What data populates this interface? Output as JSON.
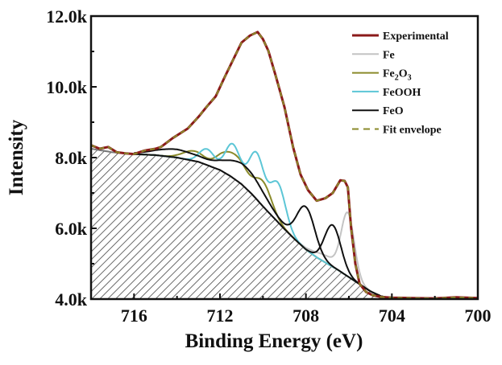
{
  "chart_data": {
    "type": "line",
    "title": "",
    "xlabel": "Binding Energy (eV)",
    "ylabel": "Intensity",
    "xlim": [
      718,
      700
    ],
    "ylim": [
      4000,
      12000
    ],
    "x_reversed": true,
    "x_ticks": [
      716,
      712,
      708,
      704,
      700
    ],
    "y_ticks": [
      4000,
      6000,
      8000,
      10000,
      12000
    ],
    "y_tick_labels": [
      "4.0k",
      "6.0k",
      "8.0k",
      "10.0k",
      "12.0k"
    ],
    "legend_position": "top-right",
    "colors": {
      "Experimental": "#8b1a1a",
      "Fe": "#c4c4c4",
      "Fe2O3": "#8a8a2a",
      "FeOOH": "#5cc6d6",
      "FeO": "#111111",
      "Fit envelope": "#8a8a2a",
      "Background": "#555555"
    },
    "legend": [
      {
        "key": "Experimental",
        "label": "Experimental",
        "sub": "",
        "tail": ""
      },
      {
        "key": "Fe",
        "label": "Fe",
        "sub": "",
        "tail": ""
      },
      {
        "key": "Fe2O3",
        "label": "Fe",
        "sub": "2",
        "mid": "O",
        "sub2": "3"
      },
      {
        "key": "FeOOH",
        "label": "FeOOH",
        "sub": "",
        "tail": ""
      },
      {
        "key": "FeO",
        "label": "FeO",
        "sub": "",
        "tail": ""
      },
      {
        "key": "Fit envelope",
        "label": "Fit envelope",
        "sub": "",
        "tail": ""
      }
    ],
    "background": {
      "x": [
        718,
        717,
        716,
        715,
        714,
        713,
        712,
        711.5,
        711,
        710.5,
        710,
        709.5,
        709,
        708.5,
        708,
        707.5,
        707,
        706.5,
        706,
        705.5,
        705,
        704.5,
        704,
        702,
        700
      ],
      "y": [
        8250,
        8150,
        8100,
        8070,
        8000,
        7880,
        7650,
        7470,
        7250,
        6960,
        6620,
        6300,
        5980,
        5680,
        5400,
        5180,
        5000,
        4820,
        4620,
        4420,
        4220,
        4080,
        4020,
        4010,
        4000
      ]
    },
    "experimental": {
      "x": [
        718,
        717.6,
        717.2,
        716.8,
        716.4,
        716,
        715.5,
        715,
        714.75,
        714.2,
        713.5,
        713,
        712.6,
        712.2,
        711.8,
        711.4,
        711,
        710.6,
        710.25,
        710,
        709.75,
        709.4,
        709,
        708.6,
        708.25,
        707.9,
        707.5,
        707.1,
        706.75,
        706.4,
        706.2,
        706.05,
        705.9,
        705.7,
        705.5,
        705.2,
        704.9,
        704.5,
        704,
        703,
        702,
        701,
        700
      ],
      "y": [
        8350,
        8250,
        8300,
        8150,
        8120,
        8100,
        8200,
        8250,
        8300,
        8550,
        8820,
        9150,
        9450,
        9730,
        10250,
        10750,
        11250,
        11450,
        11550,
        11350,
        11020,
        10300,
        9430,
        8300,
        7520,
        7080,
        6780,
        6850,
        7000,
        7360,
        7340,
        7160,
        6020,
        5000,
        4430,
        4200,
        4110,
        4060,
        4040,
        4030,
        4020,
        4050,
        4030
      ]
    },
    "components": [
      {
        "name": "Fe",
        "peaks": [
          {
            "center": 706.05,
            "height": 1750,
            "sigma": 0.3
          },
          {
            "center": 707.0,
            "height": 200,
            "sigma": 0.6
          }
        ]
      },
      {
        "name": "Fe2O3",
        "peaks": [
          {
            "center": 713.2,
            "height": 280,
            "sigma": 0.5
          },
          {
            "center": 711.8,
            "height": 450,
            "sigma": 0.4
          },
          {
            "center": 711.1,
            "height": 560,
            "sigma": 0.4
          },
          {
            "center": 710.0,
            "height": 700,
            "sigma": 0.4
          }
        ]
      },
      {
        "name": "FeOOH",
        "peaks": [
          {
            "center": 712.6,
            "height": 450,
            "sigma": 0.35
          },
          {
            "center": 711.4,
            "height": 950,
            "sigma": 0.35
          },
          {
            "center": 710.3,
            "height": 1300,
            "sigma": 0.35
          },
          {
            "center": 709.3,
            "height": 1100,
            "sigma": 0.35
          }
        ]
      },
      {
        "name": "FeO",
        "peaks": [
          {
            "center": 714.0,
            "height": 230,
            "sigma": 1.0
          },
          {
            "center": 710.8,
            "height": 600,
            "sigma": 0.9
          },
          {
            "center": 708.0,
            "height": 1200,
            "sigma": 0.42
          }
        ]
      },
      {
        "name": "FeO",
        "peaks": [
          {
            "center": 706.75,
            "height": 1180,
            "sigma": 0.38
          }
        ]
      }
    ]
  }
}
